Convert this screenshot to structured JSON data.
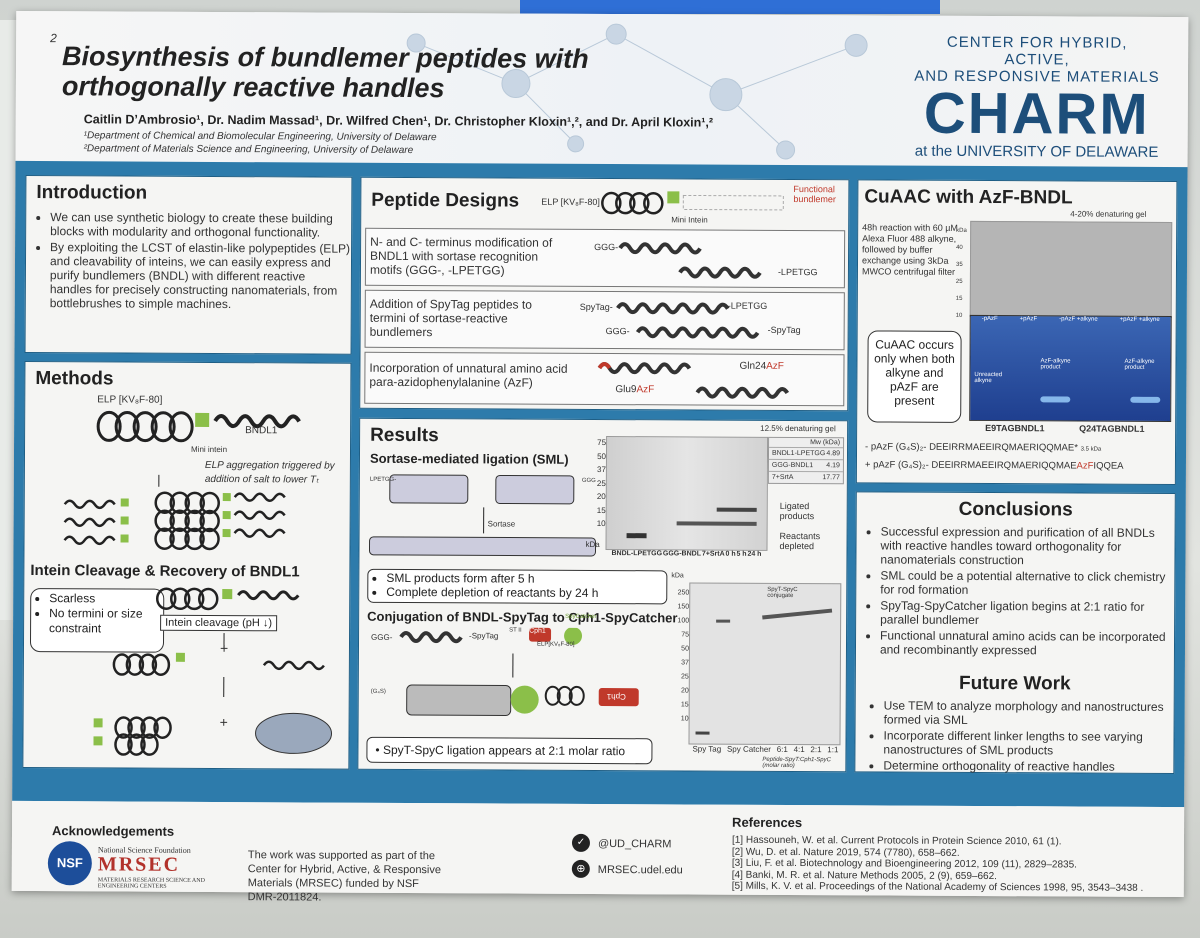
{
  "poster": {
    "number": "2",
    "title": "Biosynthesis of bundlemer peptides with orthogonally reactive handles",
    "authors": "Caitlin D’Ambrosio¹, Dr. Nadim Massad¹, Dr. Wilfred Chen¹, Dr. Christopher Kloxin¹,², and Dr. April Kloxin¹,²",
    "dept1": "¹Department of Chemical and Biomolecular Engineering, University of Delaware",
    "dept2": "²Department of Materials Science and Engineering, University of Delaware",
    "logo": {
      "line1": "CENTER FOR HYBRID, ACTIVE,",
      "line2": "AND RESPONSIVE MATERIALS",
      "big": "CHARM",
      "line4": "at the UNIVERSITY OF DELAWARE"
    }
  },
  "introduction": {
    "heading": "Introduction",
    "bullets": [
      "We can use synthetic biology to create these building blocks with modularity and orthogonal functionality.",
      "By exploiting the LCST of elastin-like polypeptides (ELP) and cleavability of inteins, we can easily express and purify bundlemers (BNDL) with different reactive handles for precisely constructing nanomaterials, from bottlebrushes to simple machines."
    ]
  },
  "methods": {
    "heading": "Methods",
    "elp_label": "ELP [KV₈F-80]",
    "intein_label": "Mini intein",
    "bndl_label": "BNDL1",
    "aggregation_note": "ELP aggregation triggered by addition of salt to lower Tₜ",
    "subheading": "Intein Cleavage & Recovery of BNDL1",
    "box_items": [
      "Scarless",
      "No termini or size constraint"
    ],
    "cleavage_label": "Intein cleavage (pH ↓)",
    "plus": "+"
  },
  "peptide_designs": {
    "heading": "Peptide Designs",
    "elp_label": "ELP [KV₈F-80]",
    "intein_label": "Mini Intein",
    "functional_label": "Functional bundlemer",
    "rows": [
      {
        "text": "N- and C- terminus modification of BNDL1 with sortase recognition motifs (GGG-, -LPETGG)",
        "left": "GGG-",
        "right": "-LPETGG"
      },
      {
        "text": "Addition of SpyTag peptides to termini of sortase-reactive bundlemers",
        "left1": "SpyTag-",
        "right1": "-LPETGG",
        "left2": "GGG-",
        "right2": "-SpyTag"
      },
      {
        "text": "Incorporation of unnatural amino acid para-azidophenylalanine (AzF)",
        "label1": "Glu9",
        "label1b": "AzF",
        "label2": "Gln24",
        "label2b": "AzF"
      }
    ]
  },
  "results": {
    "heading": "Results",
    "sml_heading": "Sortase-mediated ligation (SML)",
    "lpetgg": "LPETGG-",
    "ggg": "GGG",
    "sortase": "Sortase",
    "gel_title": "12.5% denaturing gel",
    "ladder": [
      "kDa",
      "75",
      "50",
      "37",
      "25",
      "20",
      "15",
      "10"
    ],
    "mw_header": "Mw (kDa)",
    "mw_rows": [
      {
        "name": "BNDL1-LPETGG",
        "value": "4.89"
      },
      {
        "name": "GGG-BNDL1",
        "value": "4.19"
      },
      {
        "name": "7+SrtA",
        "value": "17.77"
      }
    ],
    "lanes": [
      "BNDL-LPETGG",
      "GGG-BNDL",
      "7+SrtA",
      "0 h",
      "5 h",
      "24 h"
    ],
    "ligated": "Ligated products",
    "reactants": "Reactants depleted",
    "sml_box": [
      "SML products form after 5 h",
      "Complete depletion of reactants by 24 h"
    ],
    "conj_heading": "Conjugation of BNDL-SpyTag to Cph1-SpyCatcher",
    "ggg2": "GGG-",
    "spytag": "-SpyTag",
    "cph1": "Cph1",
    "spycatcher": "SpyCatcher",
    "elp2": "ELP[KV₈F-80]",
    "stii": "ST II",
    "g4s": "(G₄S)",
    "conj_box": "SpyT-SpyC ligation appears at 2:1 molar ratio",
    "gel2_label": "SpyT-SpyC conjugate",
    "gel2_ladder": [
      "kDa",
      "250",
      "150",
      "100",
      "75",
      "50",
      "37",
      "25",
      "20",
      "15",
      "10"
    ],
    "gel2_lanes": [
      "Spy Tag",
      "Spy Catcher",
      "6:1",
      "4:1",
      "2:1",
      "1:1"
    ],
    "gel2_caption": "Peptide-SpyT:Cph1-SpyC (molar ratio)"
  },
  "cuaac": {
    "heading": "CuAAC with AzF-BNDL",
    "gel_title": "4-20% denaturing gel",
    "desc": "48h reaction with 60 µM Alexa Fluor 488 alkyne, followed by buffer exchange using 3kDa MWCO centrifugal filter",
    "ladder": [
      "kDa",
      "40",
      "35",
      "25",
      "15",
      "10"
    ],
    "lanes": [
      "-pAzF",
      "+pAzF",
      "-pAzF +alkyne",
      "+pAzF +alkyne"
    ],
    "box": "CuAAC occurs only when both alkyne and pAzF are present",
    "unreacted": "Unreacted alkyne",
    "product": "AzF-alkyne product",
    "gel_a": "E9TAGBNDL1",
    "gel_b": "Q24TAGBNDL1",
    "seq1_prefix": "- pAzF",
    "seq1": "(G₄S)₂- DEEIRRMAEEIRQMAERIQQMAE*",
    "seq1_note": "3.5 kDa",
    "seq2_prefix": "+ pAzF",
    "seq2a": "(G₄S)₂- DEEIRRMAEEIRQMAERIQQMAE",
    "seq2b": "AzF",
    "seq2c": "IQQEA"
  },
  "conclusions": {
    "heading": "Conclusions",
    "bullets": [
      "Successful expression and purification of all BNDLs with reactive handles toward orthogonality for nanomaterials construction",
      "SML could be a potential alternative to click chemistry for rod formation",
      "SpyTag-SpyCatcher ligation begins at 2:1 ratio for parallel bundlemer",
      "Functional unnatural amino acids can be incorporated and recombinantly expressed"
    ],
    "future_heading": "Future Work",
    "future_bullets": [
      "Use TEM to analyze morphology and nanostructures formed via SML",
      "Incorporate different linker lengths to see varying nanostructures of SML products",
      "Determine orthogonality of reactive handles"
    ]
  },
  "footer": {
    "ack_heading": "Acknowledgements",
    "nsf": "NSF",
    "nsf_text": "National Science Foundation",
    "mrsec": "MRSEC",
    "mrsec_sub": "MATERIALS RESEARCH SCIENCE AND ENGINEERING CENTERS",
    "support": "The work was supported as part of the Center for Hybrid, Active, & Responsive Materials (MRSEC) funded by NSF DMR-2011824.",
    "twitter": "@UD_CHARM",
    "web": "MRSEC.udel.edu",
    "ref_heading": "References",
    "refs": [
      "[1] Hassouneh, W. et al. Current Protocols in Protein Science 2010, 61 (1).",
      "[2] Wu, D. et al. Nature 2019, 574 (7780), 658–662.",
      "[3] Liu, F. et al. Biotechnology and Bioengineering 2012, 109 (11), 2829–2835.",
      "[4] Banki, M. R. et al. Nature Methods 2005, 2 (9), 659–662.",
      "[5] Mills, K. V. et al. Proceedings of the National Academy of Sciences 1998, 95, 3543–3438 ."
    ]
  },
  "colors": {
    "blue": "#2d7bab",
    "navy": "#1d4e7a",
    "green": "#8bbf49",
    "red": "#c0392b"
  }
}
